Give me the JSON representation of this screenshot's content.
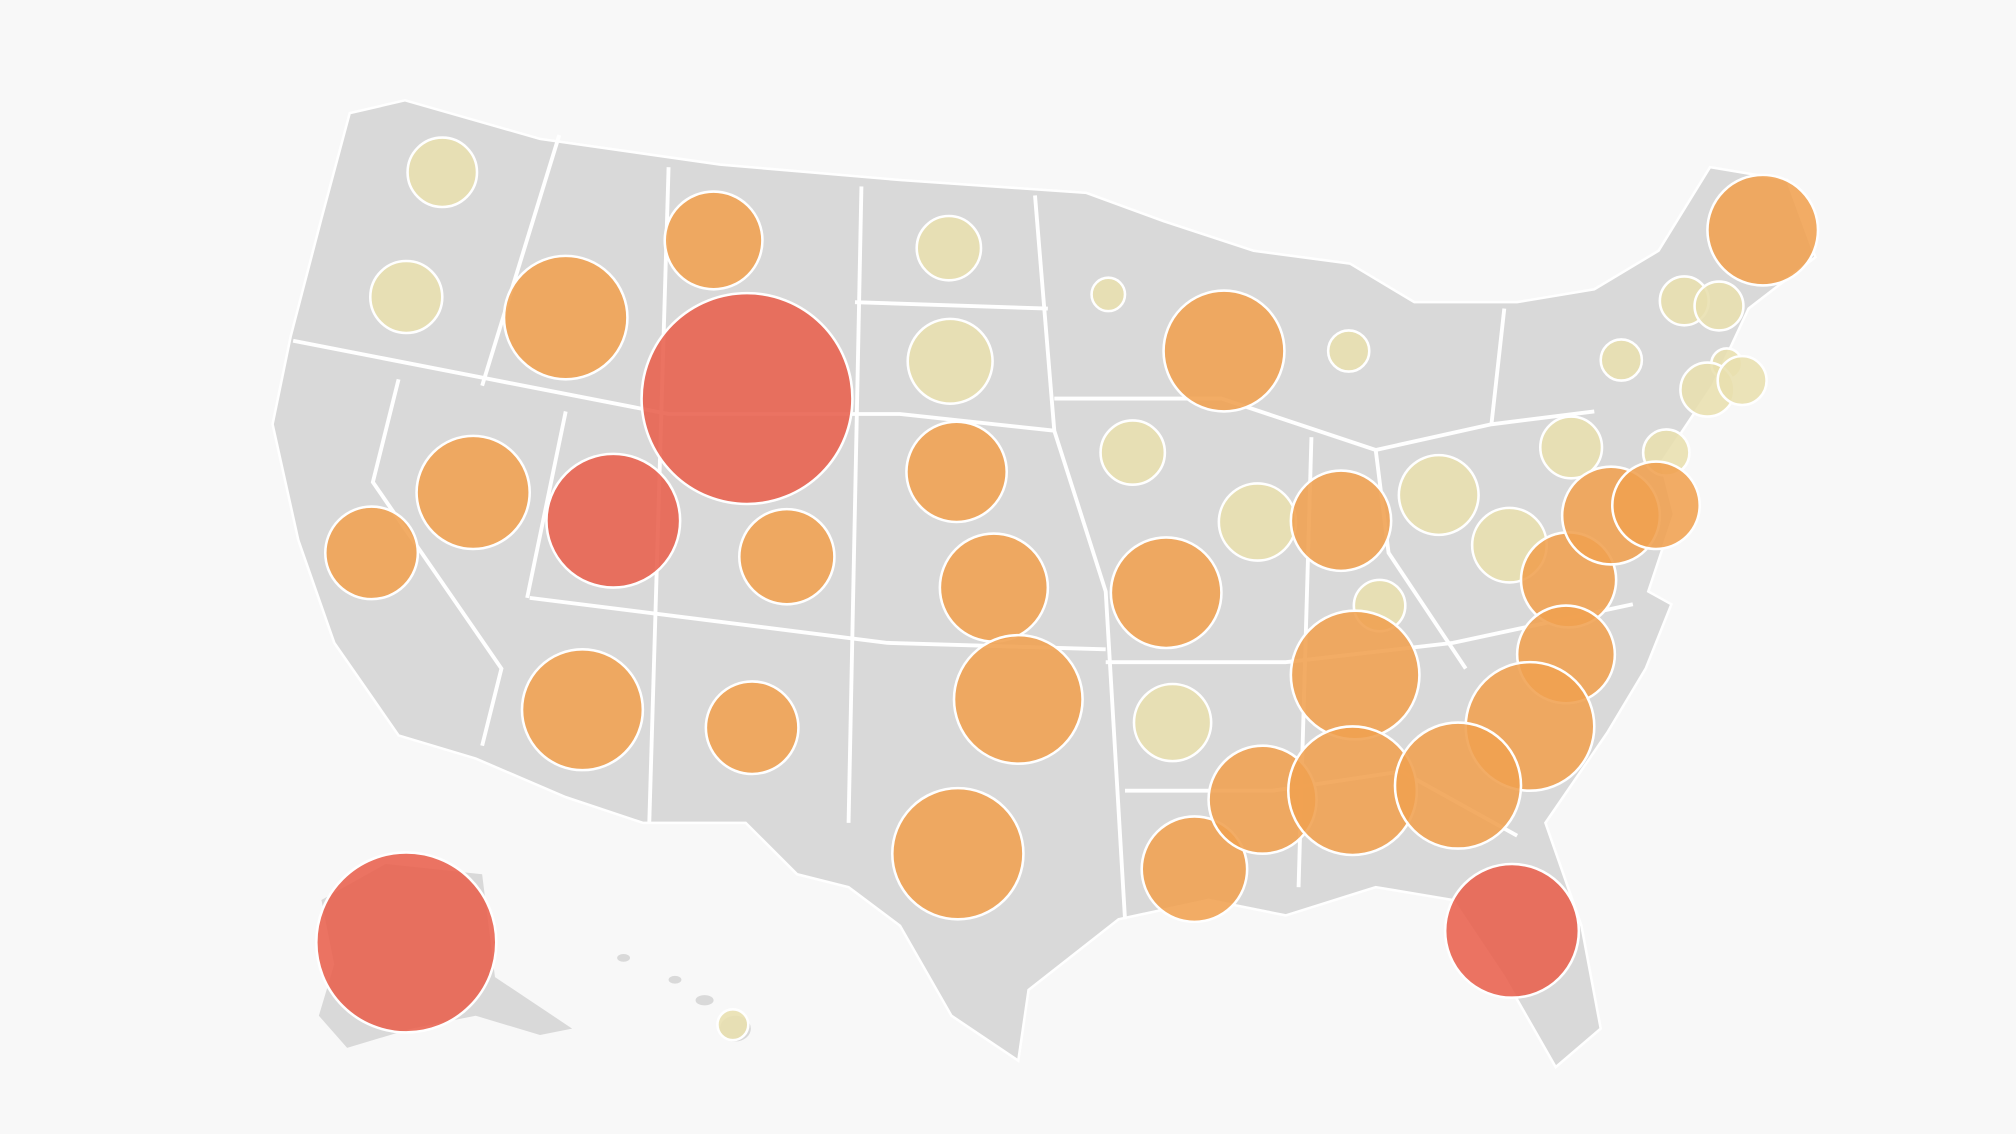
{
  "map": {
    "bubble_colors": [
      "#e8dfae",
      "#f0a050",
      "#e8604c"
    ]
  }
}
